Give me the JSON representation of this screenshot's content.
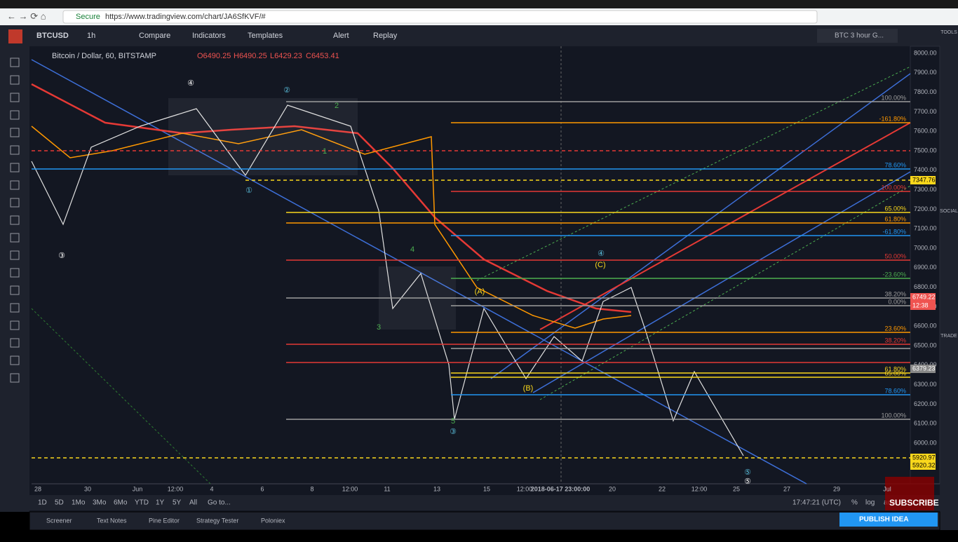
{
  "browser": {
    "secure": "Secure",
    "url": "https://www.tradingview.com/chart/JA6SfKVF/#"
  },
  "toolbar": {
    "symbol": "BTCUSD",
    "interval": "1h",
    "compare": "Compare",
    "indicators": "Indicators",
    "templates": "Templates",
    "alert": "Alert",
    "replay": "Replay",
    "layout": "BTC 3 hour G..."
  },
  "header": {
    "title": "Bitcoin / Dollar, 60, BITSTAMP",
    "open": "O6490.25",
    "high": "H6490.25",
    "low": "L6429.23",
    "close": "C6453.41"
  },
  "price_axis": [
    "8000.00",
    "7900.00",
    "7800.00",
    "7700.00",
    "7600.00",
    "7500.00",
    "7400.00",
    "7300.00",
    "7200.00",
    "7100.00",
    "7000.00",
    "6900.00",
    "6800.00",
    "6700.00",
    "6600.00",
    "6500.00",
    "6400.00",
    "6300.00",
    "6200.00",
    "6100.00",
    "6000.00"
  ],
  "price_tags": [
    "7347.76",
    "6749.22",
    "12:38",
    "6379.23",
    "5920.97",
    "5920.32"
  ],
  "date_axis": [
    "28",
    "30",
    "Jun",
    "12:00",
    "4",
    "6",
    "8",
    "12:00",
    "11",
    "13",
    "15",
    "12:00",
    "2018-06-17 23:00:00",
    "20",
    "22",
    "12:00",
    "25",
    "27",
    "29",
    "Jul"
  ],
  "fib_labels": [
    "100.00%",
    "-161.80%",
    "78.60%",
    "100.00%",
    "65.00%",
    "61.80%",
    "-61.80%",
    "50.00%",
    "-23.60%",
    "38.20%",
    "0.00%",
    "23.60%",
    "38.20%",
    "61.80%",
    "65.00%",
    "78.60%",
    "100.00%"
  ],
  "waves": [
    "④",
    "②",
    "③",
    "①",
    "2",
    "1",
    "4",
    "3",
    "5",
    "③",
    "④",
    "(C)",
    "(A)",
    "(B)",
    "⑤",
    "⑤"
  ],
  "periods": [
    "1D",
    "5D",
    "1Mo",
    "3Mo",
    "6Mo",
    "YTD",
    "1Y",
    "5Y",
    "All",
    "Go to..."
  ],
  "status": {
    "time": "17:47:21 (UTC)",
    "percent": "%",
    "log": "log",
    "auto": "auto"
  },
  "tabs": [
    "Screener",
    "Text Notes",
    "Pine Editor",
    "Strategy Tester",
    "Poloniex"
  ],
  "publish": "PUBLISH IDEA",
  "sidebar": [
    "TOOLS",
    "SOCIAL",
    "TRADE"
  ],
  "subscribe": "SUBSCRIBE"
}
